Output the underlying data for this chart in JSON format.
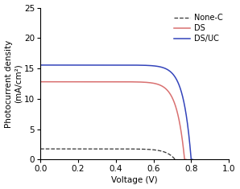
{
  "title": "",
  "xlabel": "Voltage (V)",
  "ylabel": "Photocurrent density\n(mA/cm²)",
  "xlim": [
    0.0,
    1.0
  ],
  "ylim": [
    0,
    25
  ],
  "xticks": [
    0.0,
    0.2,
    0.4,
    0.6,
    0.8,
    1.0
  ],
  "yticks": [
    0,
    5,
    10,
    15,
    20,
    25
  ],
  "legend_labels": [
    "None-C",
    "DS",
    "DS/UC"
  ],
  "legend_colors": [
    "#333333",
    "#d97070",
    "#3344bb"
  ],
  "none_c": {
    "jsc": 1.75,
    "voc": 0.715,
    "ideality": 1.8,
    "rs": 0.5,
    "color": "#333333",
    "style": "--",
    "lw": 0.9
  },
  "ds": {
    "jsc": 12.8,
    "voc": 0.765,
    "ideality": 1.6,
    "rs": 0.3,
    "color": "#d97070",
    "style": "-",
    "lw": 1.1
  },
  "ds_uc": {
    "jsc": 15.55,
    "voc": 0.8,
    "ideality": 1.6,
    "rs": 0.3,
    "color": "#3344bb",
    "style": "-",
    "lw": 1.1
  },
  "background_color": "#ffffff",
  "font_size": 7.5
}
